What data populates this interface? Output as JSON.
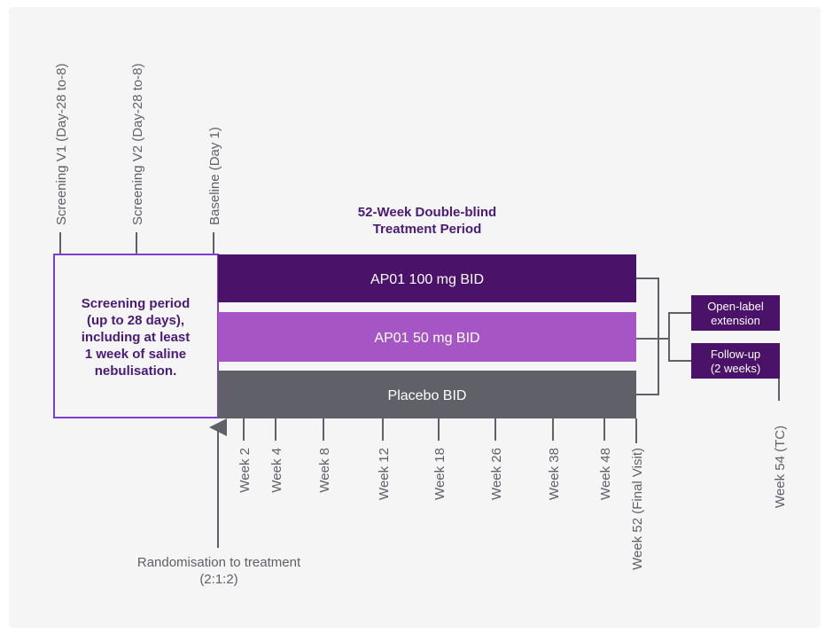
{
  "title": [
    "52-Week Double-blind",
    "Treatment Period"
  ],
  "top_milestones": [
    "Screening V1 (Day-28 to-8)",
    "Screening V2 (Day-28 to-8)",
    "Baseline (Day 1)"
  ],
  "screening_box": [
    "Screening period",
    "(up to 28 days),",
    "including at least",
    "1 week of saline",
    "nebulisation."
  ],
  "arms": [
    {
      "label": "AP01 100 mg BID",
      "color": "#4a1268"
    },
    {
      "label": "AP01 50 mg BID",
      "color": "#a556c4"
    },
    {
      "label": "Placebo BID",
      "color": "#5f6068"
    }
  ],
  "post_boxes": [
    {
      "lines": [
        "Open-label",
        "extension"
      ],
      "color": "#4a1268"
    },
    {
      "lines": [
        "Follow-up",
        "(2 weeks)"
      ],
      "color": "#4a1268"
    }
  ],
  "weeks": [
    "Week 2",
    "Week 4",
    "Week 8",
    "Week 12",
    "Week 18",
    "Week 26",
    "Week 38",
    "Week 48",
    "Week 52 (Final Visit)"
  ],
  "final_week": "Week 54 (TC)",
  "randomisation": [
    "Randomisation to treatment",
    "(2:1:2)"
  ],
  "colors": {
    "screening_border": "#7a3fd0",
    "title": "#4a1a78",
    "lines": "#5f6068",
    "background": "#f5f5f6"
  }
}
